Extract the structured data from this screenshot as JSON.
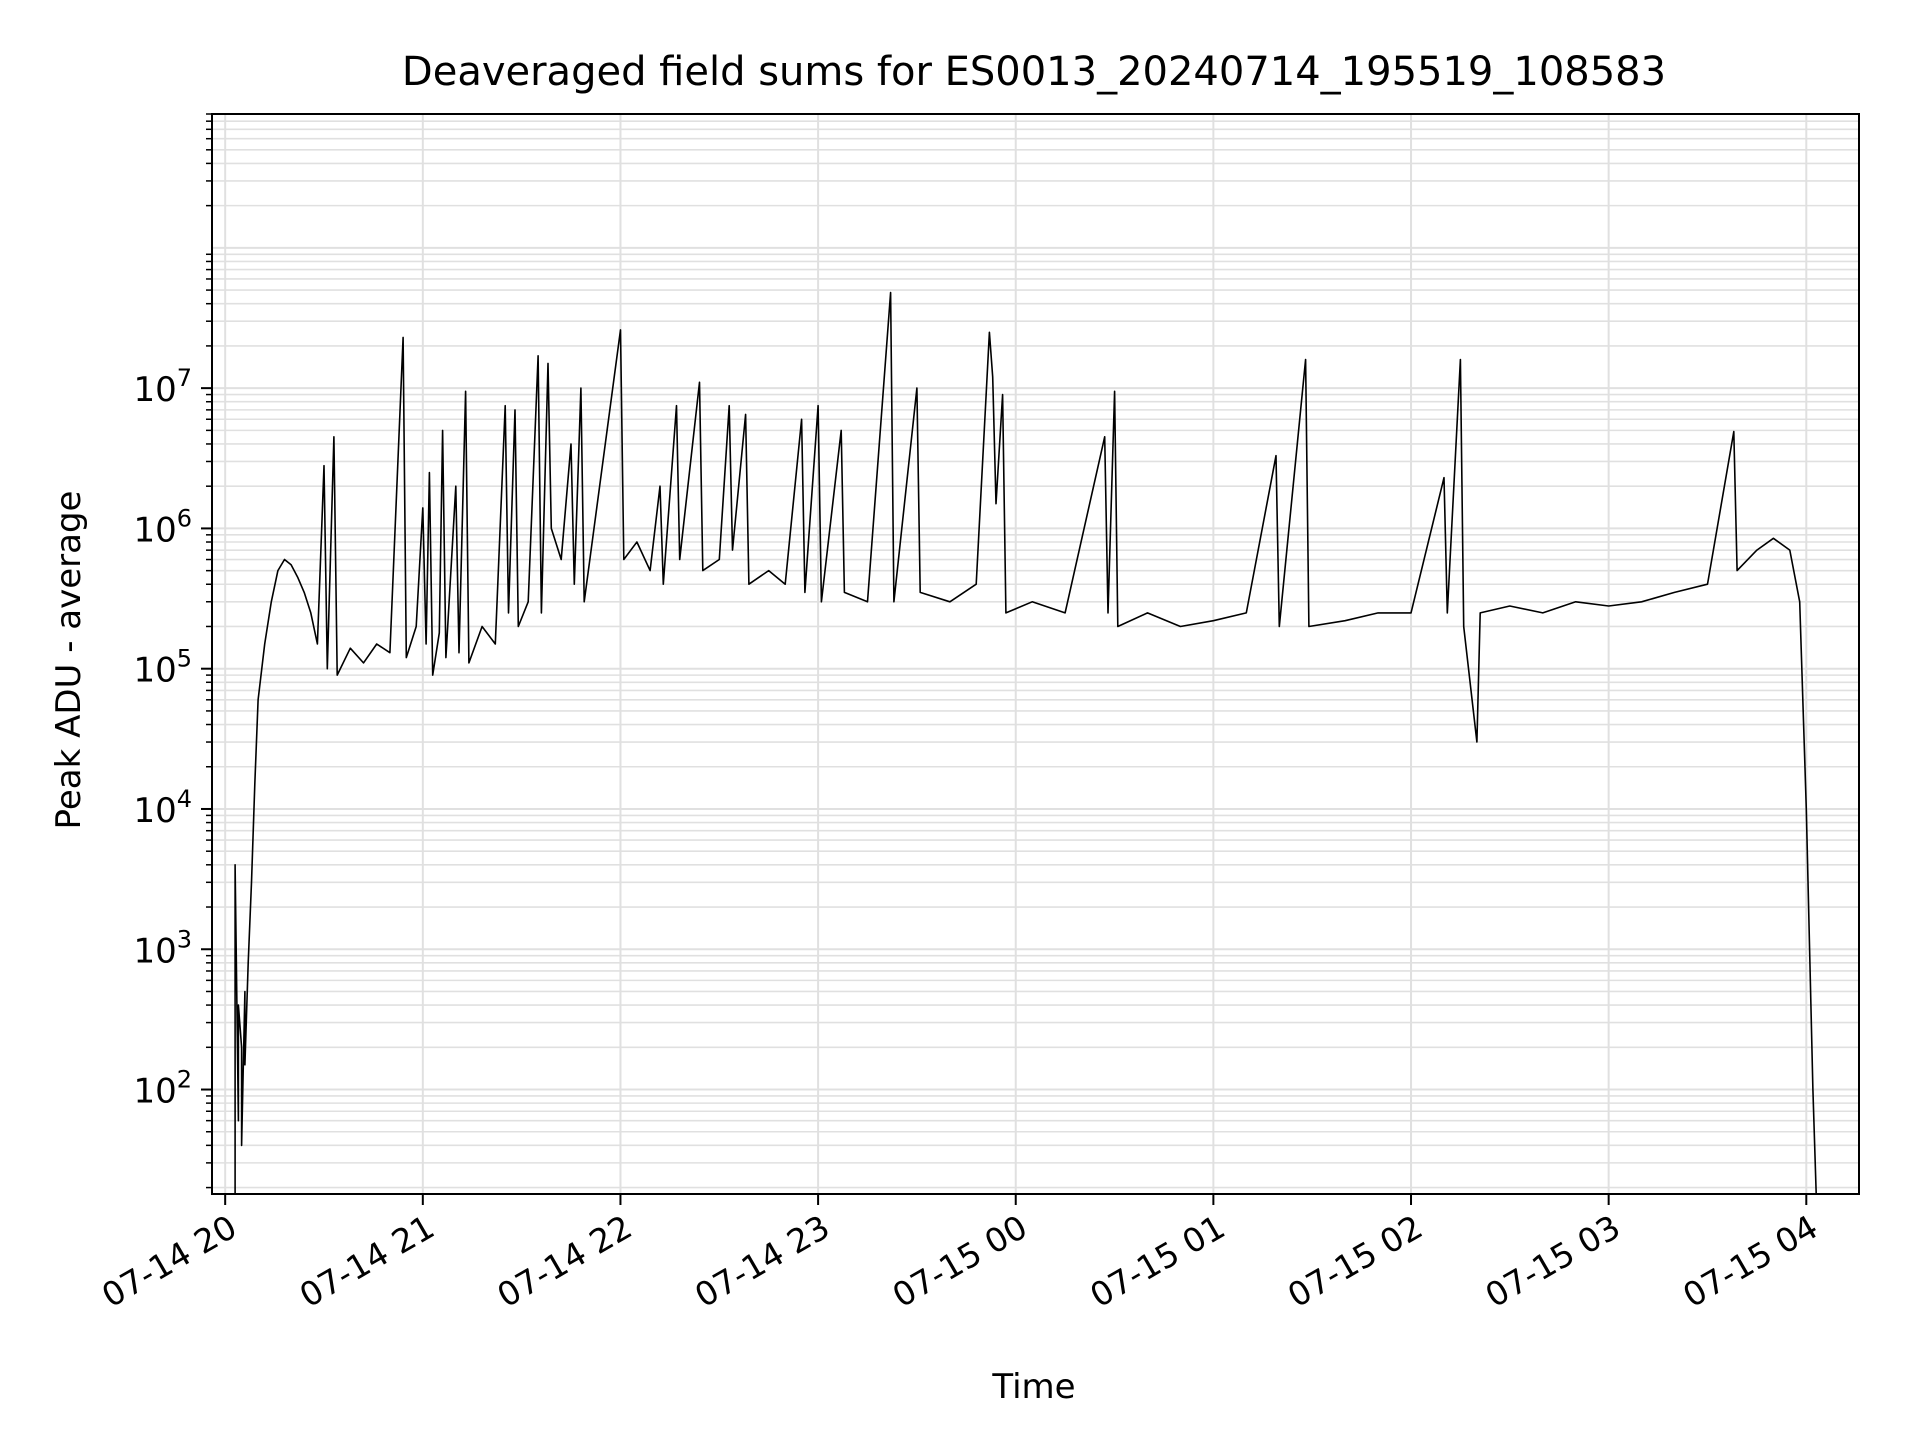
{
  "chart_data": {
    "type": "line",
    "title": "Deaveraged field sums for ES0013_20240714_195519_108583",
    "xlabel": "Time",
    "ylabel": "Peak ADU - average",
    "yscale": "log",
    "ylim": [
      18,
      900000000
    ],
    "xlim": [
      "2024-07-14 19:56",
      "2024-07-15 04:16"
    ],
    "grid": true,
    "line_color": "#000000",
    "grid_color": "#e0e0e0",
    "x_ticks": [
      {
        "value": "2024-07-14 20:00",
        "label": "07-14 20"
      },
      {
        "value": "2024-07-14 21:00",
        "label": "07-14 21"
      },
      {
        "value": "2024-07-14 22:00",
        "label": "07-14 22"
      },
      {
        "value": "2024-07-14 23:00",
        "label": "07-14 23"
      },
      {
        "value": "2024-07-15 00:00",
        "label": "07-15 00"
      },
      {
        "value": "2024-07-15 01:00",
        "label": "07-15 01"
      },
      {
        "value": "2024-07-15 02:00",
        "label": "07-15 02"
      },
      {
        "value": "2024-07-15 03:00",
        "label": "07-15 03"
      },
      {
        "value": "2024-07-15 04:00",
        "label": "07-15 04"
      }
    ],
    "y_ticks": [
      {
        "value": 100,
        "base": "10",
        "exp": "2"
      },
      {
        "value": 1000,
        "base": "10",
        "exp": "3"
      },
      {
        "value": 10000,
        "base": "10",
        "exp": "4"
      },
      {
        "value": 100000,
        "base": "10",
        "exp": "5"
      },
      {
        "value": 1000000,
        "base": "10",
        "exp": "6"
      },
      {
        "value": 10000000,
        "base": "10",
        "exp": "7"
      }
    ],
    "series": [
      {
        "points": [
          [
            "2024-07-14 20:03",
            18
          ],
          [
            "2024-07-14 20:03",
            4000
          ],
          [
            "2024-07-14 20:04",
            60
          ],
          [
            "2024-07-14 20:04",
            400
          ],
          [
            "2024-07-14 20:05",
            200
          ],
          [
            "2024-07-14 20:05",
            40
          ],
          [
            "2024-07-14 20:06",
            500
          ],
          [
            "2024-07-14 20:06",
            150
          ],
          [
            "2024-07-14 20:07",
            800
          ],
          [
            "2024-07-14 20:08",
            3000
          ],
          [
            "2024-07-14 20:09",
            15000
          ],
          [
            "2024-07-14 20:10",
            60000
          ],
          [
            "2024-07-14 20:12",
            150000
          ],
          [
            "2024-07-14 20:14",
            300000
          ],
          [
            "2024-07-14 20:16",
            500000
          ],
          [
            "2024-07-14 20:18",
            600000
          ],
          [
            "2024-07-14 20:20",
            550000
          ],
          [
            "2024-07-14 20:22",
            450000
          ],
          [
            "2024-07-14 20:24",
            350000
          ],
          [
            "2024-07-14 20:26",
            250000
          ],
          [
            "2024-07-14 20:28",
            150000
          ],
          [
            "2024-07-14 20:30",
            2800000
          ],
          [
            "2024-07-14 20:31",
            100000
          ],
          [
            "2024-07-14 20:33",
            4500000
          ],
          [
            "2024-07-14 20:34",
            90000
          ],
          [
            "2024-07-14 20:38",
            140000
          ],
          [
            "2024-07-14 20:42",
            110000
          ],
          [
            "2024-07-14 20:46",
            150000
          ],
          [
            "2024-07-14 20:50",
            130000
          ],
          [
            "2024-07-14 20:54",
            23000000
          ],
          [
            "2024-07-14 20:55",
            120000
          ],
          [
            "2024-07-14 20:58",
            200000
          ],
          [
            "2024-07-14 21:00",
            1400000
          ],
          [
            "2024-07-14 21:01",
            150000
          ],
          [
            "2024-07-14 21:02",
            2500000
          ],
          [
            "2024-07-14 21:03",
            90000
          ],
          [
            "2024-07-14 21:05",
            180000
          ],
          [
            "2024-07-14 21:06",
            5000000
          ],
          [
            "2024-07-14 21:07",
            120000
          ],
          [
            "2024-07-14 21:10",
            2000000
          ],
          [
            "2024-07-14 21:11",
            130000
          ],
          [
            "2024-07-14 21:13",
            9500000
          ],
          [
            "2024-07-14 21:14",
            110000
          ],
          [
            "2024-07-14 21:18",
            200000
          ],
          [
            "2024-07-14 21:22",
            150000
          ],
          [
            "2024-07-14 21:25",
            7500000
          ],
          [
            "2024-07-14 21:26",
            250000
          ],
          [
            "2024-07-14 21:28",
            7000000
          ],
          [
            "2024-07-14 21:29",
            200000
          ],
          [
            "2024-07-14 21:32",
            300000
          ],
          [
            "2024-07-14 21:35",
            17000000
          ],
          [
            "2024-07-14 21:36",
            250000
          ],
          [
            "2024-07-14 21:38",
            15000000
          ],
          [
            "2024-07-14 21:39",
            1000000
          ],
          [
            "2024-07-14 21:42",
            600000
          ],
          [
            "2024-07-14 21:45",
            4000000
          ],
          [
            "2024-07-14 21:46",
            400000
          ],
          [
            "2024-07-14 21:48",
            10000000
          ],
          [
            "2024-07-14 21:49",
            300000
          ],
          [
            "2024-07-14 22:00",
            26000000
          ],
          [
            "2024-07-14 22:01",
            600000
          ],
          [
            "2024-07-14 22:05",
            800000
          ],
          [
            "2024-07-14 22:09",
            500000
          ],
          [
            "2024-07-14 22:12",
            2000000
          ],
          [
            "2024-07-14 22:13",
            400000
          ],
          [
            "2024-07-14 22:17",
            7500000
          ],
          [
            "2024-07-14 22:18",
            600000
          ],
          [
            "2024-07-14 22:24",
            11000000
          ],
          [
            "2024-07-14 22:25",
            500000
          ],
          [
            "2024-07-14 22:30",
            600000
          ],
          [
            "2024-07-14 22:33",
            7500000
          ],
          [
            "2024-07-14 22:34",
            700000
          ],
          [
            "2024-07-14 22:38",
            6500000
          ],
          [
            "2024-07-14 22:39",
            400000
          ],
          [
            "2024-07-14 22:45",
            500000
          ],
          [
            "2024-07-14 22:50",
            400000
          ],
          [
            "2024-07-14 22:55",
            6000000
          ],
          [
            "2024-07-14 22:56",
            350000
          ],
          [
            "2024-07-14 23:00",
            7500000
          ],
          [
            "2024-07-14 23:01",
            300000
          ],
          [
            "2024-07-14 23:07",
            5000000
          ],
          [
            "2024-07-14 23:08",
            350000
          ],
          [
            "2024-07-14 23:15",
            300000
          ],
          [
            "2024-07-14 23:22",
            48000000
          ],
          [
            "2024-07-14 23:23",
            300000
          ],
          [
            "2024-07-14 23:30",
            10000000
          ],
          [
            "2024-07-14 23:31",
            350000
          ],
          [
            "2024-07-14 23:40",
            300000
          ],
          [
            "2024-07-14 23:48",
            400000
          ],
          [
            "2024-07-14 23:52",
            25000000
          ],
          [
            "2024-07-14 23:53",
            12000000
          ],
          [
            "2024-07-14 23:54",
            1500000
          ],
          [
            "2024-07-14 23:56",
            9000000
          ],
          [
            "2024-07-14 23:57",
            250000
          ],
          [
            "2024-07-15 00:05",
            300000
          ],
          [
            "2024-07-15 00:15",
            250000
          ],
          [
            "2024-07-15 00:27",
            4500000
          ],
          [
            "2024-07-15 00:28",
            250000
          ],
          [
            "2024-07-15 00:30",
            9500000
          ],
          [
            "2024-07-15 00:31",
            200000
          ],
          [
            "2024-07-15 00:40",
            250000
          ],
          [
            "2024-07-15 00:50",
            200000
          ],
          [
            "2024-07-15 01:00",
            220000
          ],
          [
            "2024-07-15 01:10",
            250000
          ],
          [
            "2024-07-15 01:19",
            3300000
          ],
          [
            "2024-07-15 01:20",
            200000
          ],
          [
            "2024-07-15 01:28",
            16000000
          ],
          [
            "2024-07-15 01:29",
            200000
          ],
          [
            "2024-07-15 01:40",
            220000
          ],
          [
            "2024-07-15 01:50",
            250000
          ],
          [
            "2024-07-15 02:00",
            250000
          ],
          [
            "2024-07-15 02:10",
            2300000
          ],
          [
            "2024-07-15 02:11",
            250000
          ],
          [
            "2024-07-15 02:15",
            16000000
          ],
          [
            "2024-07-15 02:16",
            200000
          ],
          [
            "2024-07-15 02:20",
            30000
          ],
          [
            "2024-07-15 02:21",
            250000
          ],
          [
            "2024-07-15 02:30",
            280000
          ],
          [
            "2024-07-15 02:40",
            250000
          ],
          [
            "2024-07-15 02:50",
            300000
          ],
          [
            "2024-07-15 03:00",
            280000
          ],
          [
            "2024-07-15 03:10",
            300000
          ],
          [
            "2024-07-15 03:20",
            350000
          ],
          [
            "2024-07-15 03:30",
            400000
          ],
          [
            "2024-07-15 03:38",
            4900000
          ],
          [
            "2024-07-15 03:39",
            500000
          ],
          [
            "2024-07-15 03:45",
            700000
          ],
          [
            "2024-07-15 03:50",
            850000
          ],
          [
            "2024-07-15 03:55",
            700000
          ],
          [
            "2024-07-15 03:58",
            300000
          ],
          [
            "2024-07-15 04:00",
            10000
          ],
          [
            "2024-07-15 04:01",
            1000
          ],
          [
            "2024-07-15 04:02",
            100
          ],
          [
            "2024-07-15 04:03",
            18
          ]
        ]
      }
    ]
  }
}
